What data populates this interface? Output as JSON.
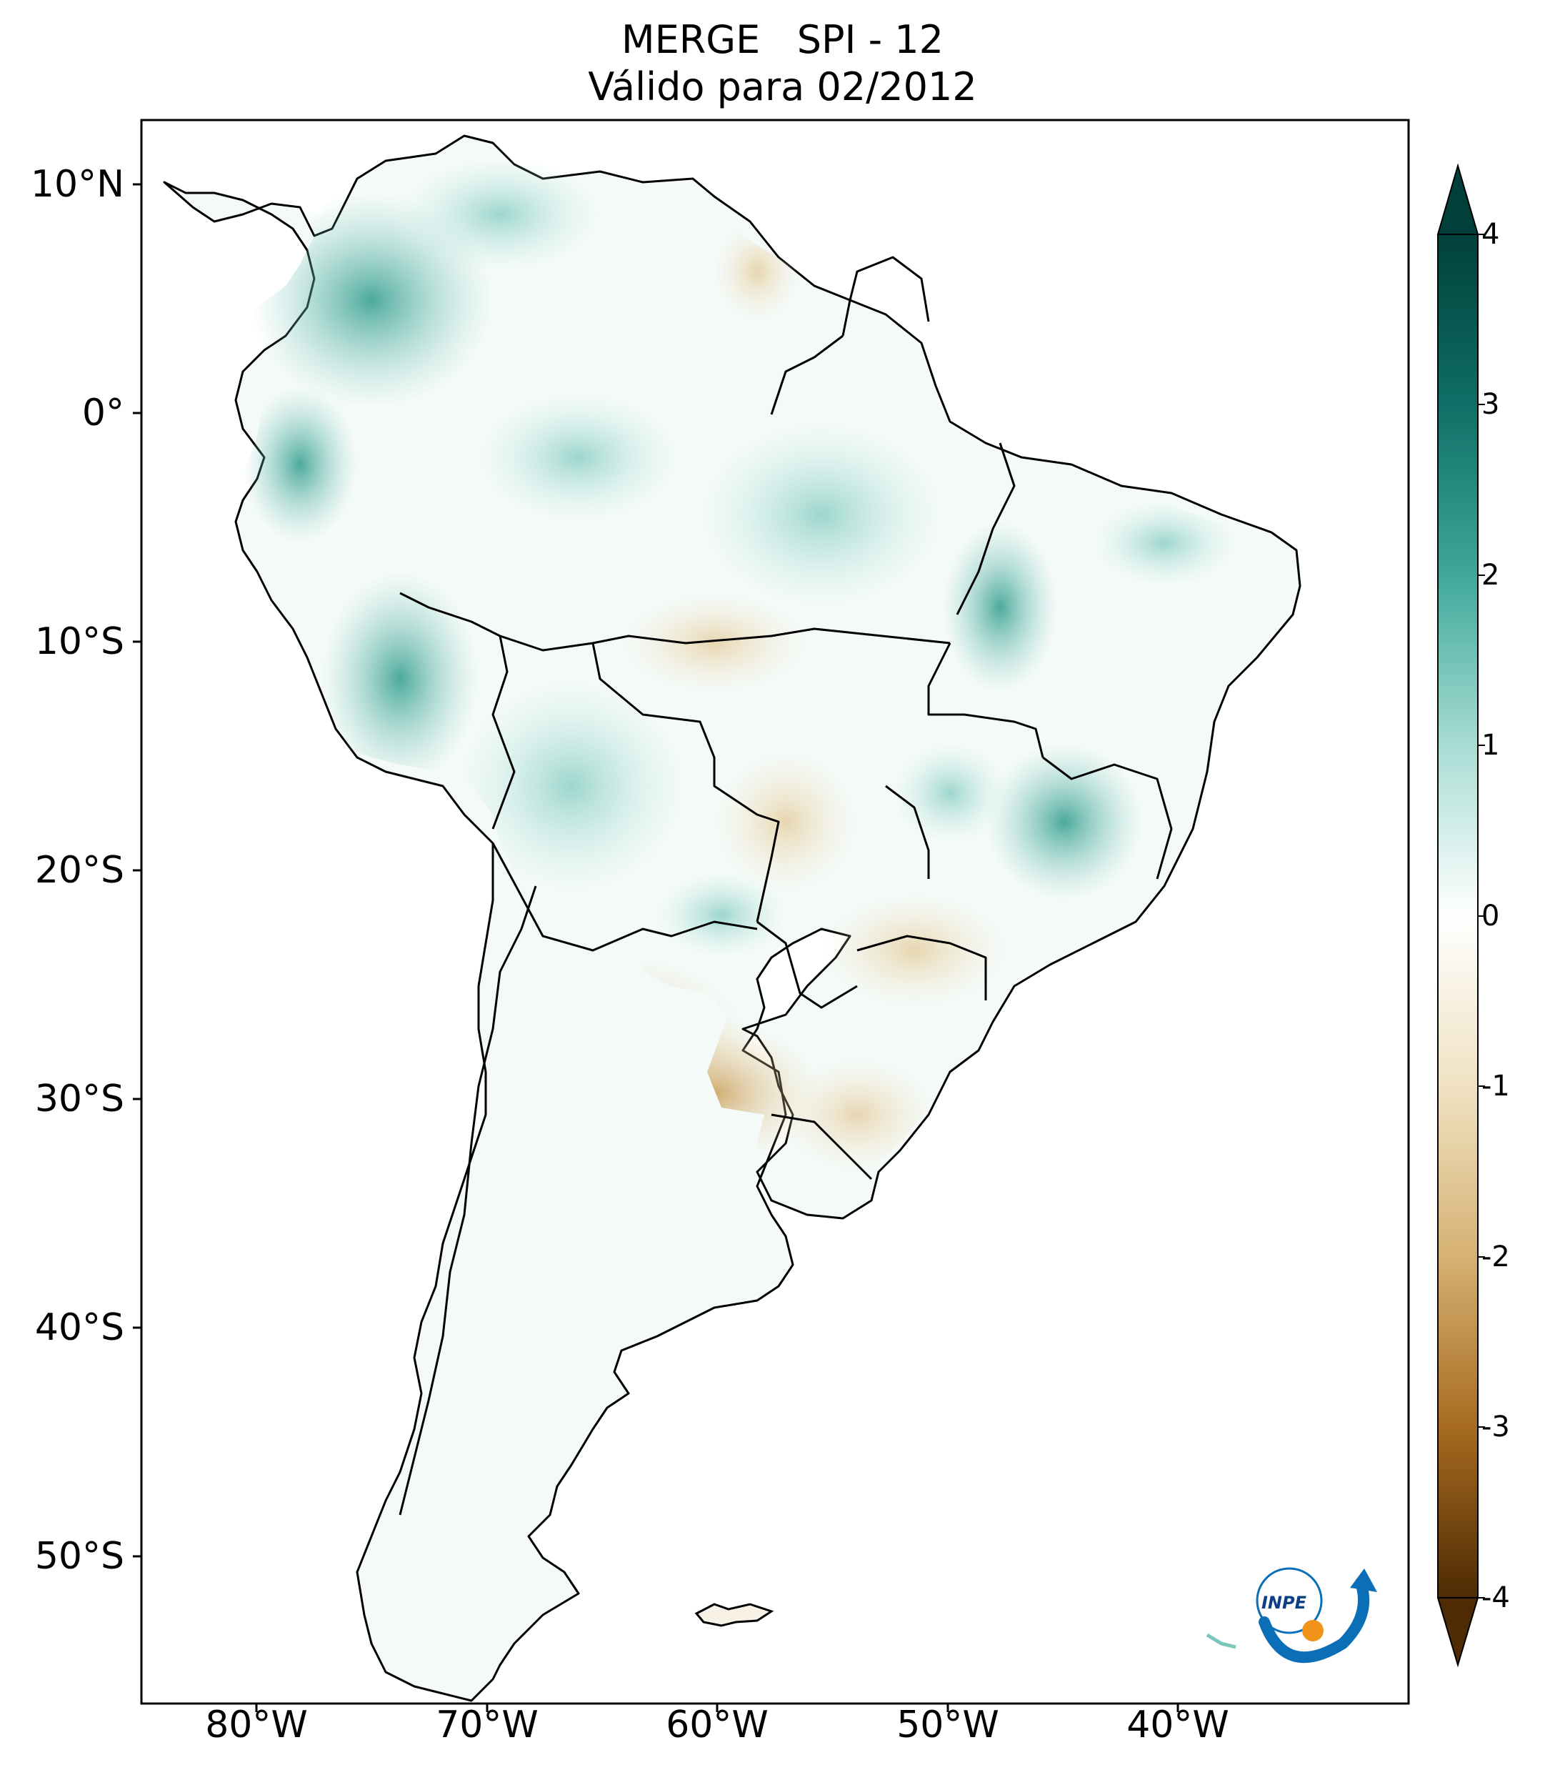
{
  "title": {
    "line1": "MERGE   SPI - 12",
    "line2": "Válido para 02/2012"
  },
  "map": {
    "latitude_ticks": [
      "10°N",
      "0°",
      "10°S",
      "20°S",
      "30°S",
      "40°S",
      "50°S"
    ],
    "longitude_ticks": [
      "80°W",
      "70°W",
      "60°W",
      "50°W",
      "40°W"
    ],
    "extent_lon": [
      -85,
      -30
    ],
    "extent_lat": [
      -56,
      13
    ]
  },
  "colorbar": {
    "ticks": [
      "4",
      "3",
      "2",
      "1",
      "0",
      "-1",
      "-2",
      "-3",
      "-4"
    ],
    "range": [
      -4,
      4
    ],
    "colors": {
      "dark_green": "#01403a",
      "green": "#1a8a7d",
      "light_green": "#b3e4dd",
      "neutral": "#ffffff",
      "light_brown": "#ecdab2",
      "brown": "#c28a3c",
      "dark_brown": "#4e2b04"
    }
  },
  "logo": {
    "text": "INPE",
    "colors": {
      "blue": "#0b6fb8",
      "orange": "#f2941b"
    }
  }
}
